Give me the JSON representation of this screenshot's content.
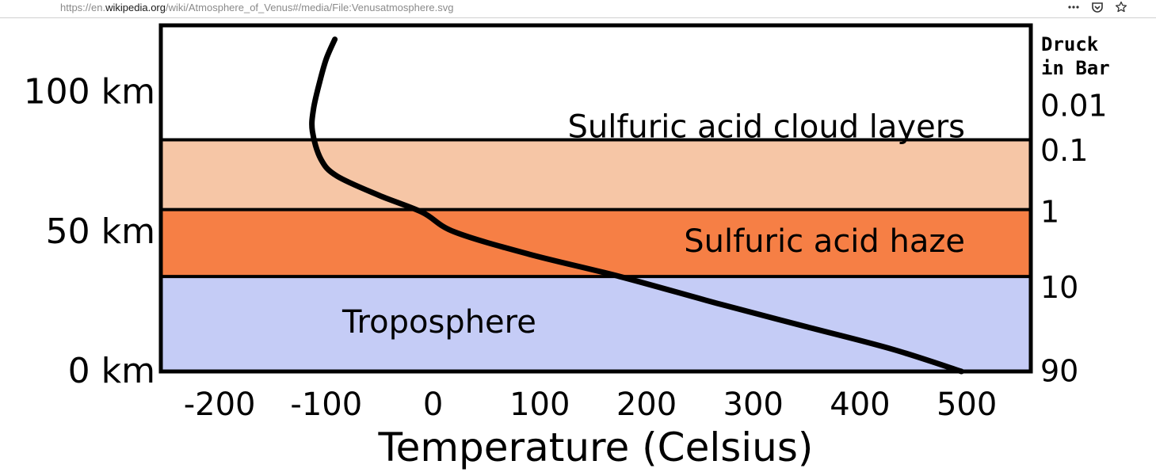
{
  "browser": {
    "url_scheme": "https://",
    "url_sub": "en.",
    "url_host": "wikipedia.org",
    "url_path": "/wiki/Atmosphere_of_Venus#/media/File:Venusatmosphere.svg",
    "icons": [
      "more-horizontal-icon",
      "pocket-icon",
      "star-icon"
    ]
  },
  "colors": {
    "cloud": "#f6c6a6",
    "haze": "#f67f45",
    "troposphere": "#c5ccf6",
    "upper": "#ffffff"
  },
  "chart_data": {
    "type": "line",
    "xlabel": "Temperature (Celsius)",
    "xlim": [
      -255,
      560
    ],
    "x_ticks": [
      -200,
      -100,
      0,
      100,
      200,
      300,
      400,
      500
    ],
    "ylim": [
      0,
      124
    ],
    "y_ticks": [
      {
        "value": 0,
        "label": "0 km"
      },
      {
        "value": 50,
        "label": "50 km"
      },
      {
        "value": 100,
        "label": "100 km"
      }
    ],
    "pressure_axis": {
      "title_line1": "Druck",
      "title_line2": "in Bar",
      "ticks": [
        {
          "altitude": 0,
          "label": "90"
        },
        {
          "altitude": 30,
          "label": "10"
        },
        {
          "altitude": 57,
          "label": "1"
        },
        {
          "altitude": 79,
          "label": "0.1"
        },
        {
          "altitude": 95,
          "label": "0.01"
        }
      ]
    },
    "layers": [
      {
        "name": "Troposphere",
        "bottom": 0,
        "top": 34,
        "color": "#c5ccf6",
        "label": "Troposphere"
      },
      {
        "name": "Sulfuric acid haze",
        "bottom": 34,
        "top": 58,
        "color": "#f67f45",
        "label": "Sulfuric acid haze"
      },
      {
        "name": "Cloud band",
        "bottom": 58,
        "top": 83,
        "color": "#f6c6a6",
        "label": ""
      },
      {
        "name": "Upper",
        "bottom": 83,
        "top": 128,
        "color": "#ffffff",
        "label": "Sulfuric acid cloud layers"
      }
    ],
    "series": [
      {
        "x": [
          495,
          430,
          350,
          270,
          175,
          90,
          20,
          -10,
          -50,
          -90,
          -105,
          -113,
          -112,
          -106,
          -100,
          -92
        ],
        "y": [
          0,
          8,
          16,
          24,
          34,
          42,
          50,
          57,
          63,
          70,
          76,
          86,
          94,
          104,
          112,
          119
        ]
      }
    ]
  }
}
